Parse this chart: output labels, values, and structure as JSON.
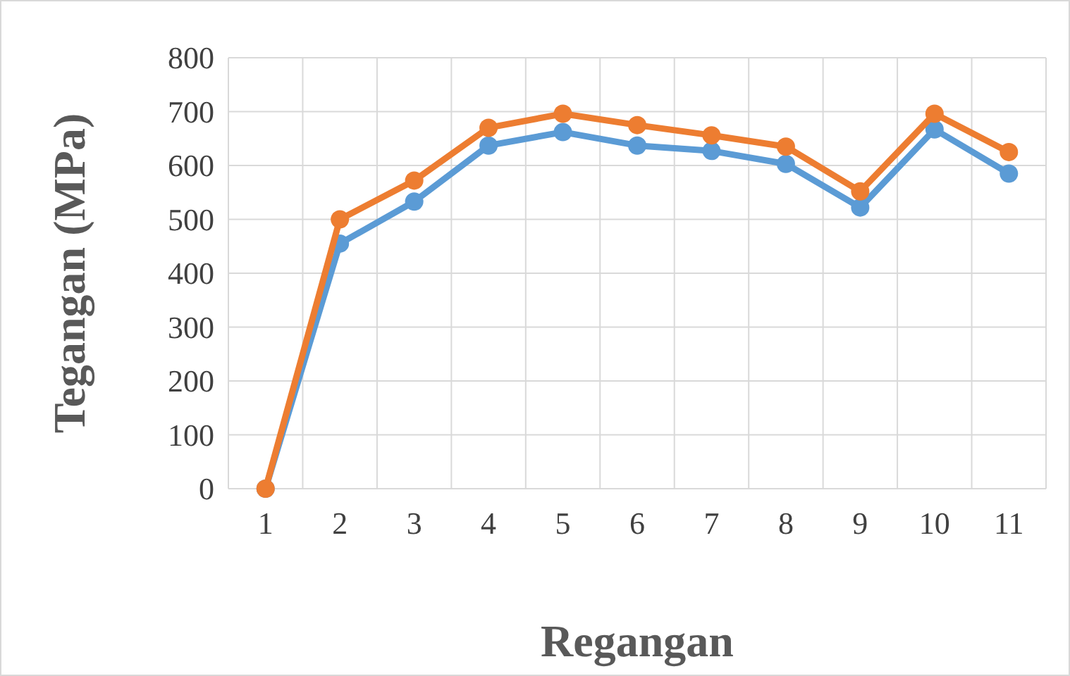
{
  "chart_data": {
    "type": "line",
    "xlabel": "Regangan",
    "ylabel": "Tegangan (MPa)",
    "categories": [
      "1",
      "2",
      "3",
      "4",
      "5",
      "6",
      "7",
      "8",
      "9",
      "10",
      "11"
    ],
    "series": [
      {
        "color": "#5b9bd5",
        "values": [
          0,
          455,
          533,
          637,
          662,
          637,
          627,
          603,
          522,
          667,
          585
        ]
      },
      {
        "color": "#ed7d31",
        "values": [
          0,
          500,
          572,
          670,
          696,
          675,
          656,
          635,
          552,
          696,
          625
        ]
      }
    ],
    "ylim": [
      0,
      800
    ],
    "yticks": [
      0,
      100,
      200,
      300,
      400,
      500,
      600,
      700,
      800
    ],
    "grid": true,
    "marker": "circle",
    "line_style": "solid"
  }
}
